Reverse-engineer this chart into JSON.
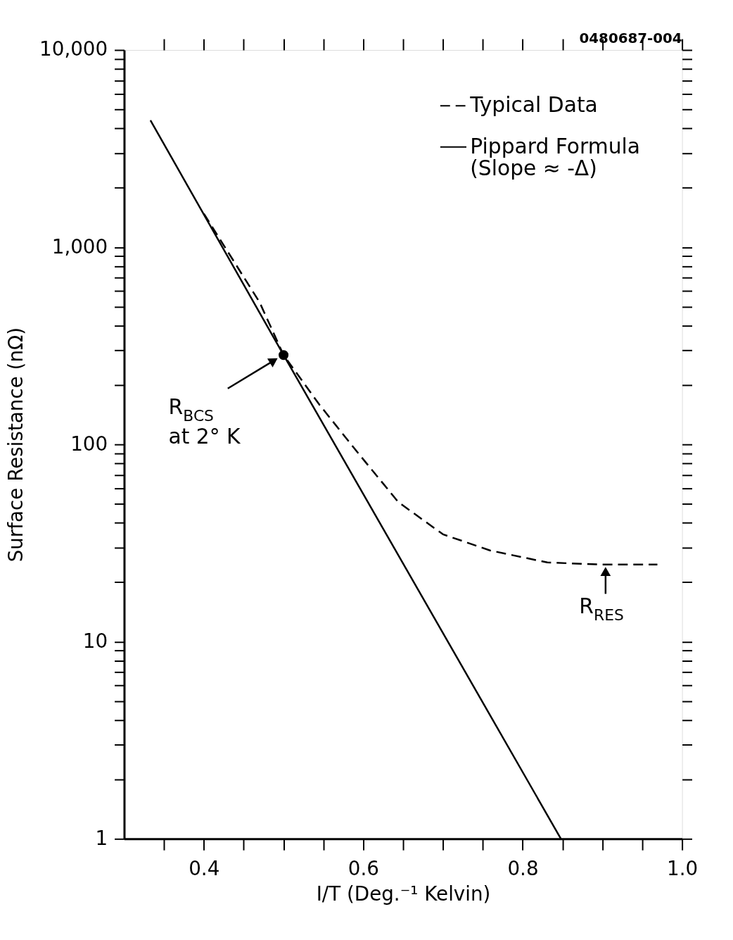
{
  "chart_data": {
    "type": "line",
    "xlabel": "I/T (Deg.⁻¹ Kelvin)",
    "ylabel": "Surface Resistance (nΩ)",
    "xlim": [
      0.3,
      1.0
    ],
    "ylim": [
      1,
      10000
    ],
    "log": "y",
    "grid": false,
    "legend": "top right",
    "xticks": [
      {
        "value": 0.35,
        "label": null
      },
      0.4,
      {
        "value": 0.45,
        "label": null
      },
      {
        "value": 0.5,
        "label": null
      },
      {
        "value": 0.55,
        "label": null
      },
      0.6,
      {
        "value": 0.65,
        "label": null
      },
      {
        "value": 0.7,
        "label": null
      },
      {
        "value": 0.75,
        "label": null
      },
      0.8,
      {
        "value": 0.85,
        "label": null
      },
      {
        "value": 0.9,
        "label": null
      },
      {
        "value": 0.95,
        "label": null
      },
      {
        "value": 1.0,
        "label": "1.0"
      }
    ],
    "yticks": [
      1,
      {
        "value": 2,
        "label": null
      },
      {
        "value": 3,
        "label": null
      },
      {
        "value": 4,
        "label": null
      },
      {
        "value": 5,
        "label": null
      },
      {
        "value": 6,
        "label": null
      },
      {
        "value": 7,
        "label": null
      },
      {
        "value": 8,
        "label": null
      },
      {
        "value": 9,
        "label": null
      },
      10,
      {
        "value": 20,
        "label": null
      },
      {
        "value": 30,
        "label": null
      },
      {
        "value": 40,
        "label": null
      },
      {
        "value": 50,
        "label": null
      },
      {
        "value": 60,
        "label": null
      },
      {
        "value": 70,
        "label": null
      },
      {
        "value": 80,
        "label": null
      },
      {
        "value": 90,
        "label": null
      },
      100,
      {
        "value": 200,
        "label": null
      },
      {
        "value": 300,
        "label": null
      },
      {
        "value": 400,
        "label": null
      },
      {
        "value": 500,
        "label": null
      },
      {
        "value": 600,
        "label": null
      },
      {
        "value": 700,
        "label": null
      },
      {
        "value": 800,
        "label": null
      },
      {
        "value": 900,
        "label": null
      },
      {
        "value": 1000,
        "label": "1,000"
      },
      {
        "value": 2000,
        "label": null
      },
      {
        "value": 3000,
        "label": null
      },
      {
        "value": 4000,
        "label": null
      },
      {
        "value": 5000,
        "label": null
      },
      {
        "value": 6000,
        "label": null
      },
      {
        "value": 7000,
        "label": null
      },
      {
        "value": 8000,
        "label": null
      },
      {
        "value": 9000,
        "label": null
      },
      {
        "value": 10000,
        "label": "10,000"
      }
    ],
    "series": [
      {
        "name": "Typical Data",
        "line_style": "dashed",
        "color": "#000000",
        "x": [
          0.4,
          0.47,
          0.5,
          0.545,
          0.592,
          0.644,
          0.7,
          0.759,
          0.831,
          0.897,
          0.969
        ],
        "values": [
          1480,
          525,
          284,
          159,
          92,
          51,
          35,
          29,
          25.2,
          24.6,
          24.6
        ]
      },
      {
        "name": "Pippard Formula (Slope ≈ -Δ)",
        "line_style": "solid",
        "color": "#000000",
        "x": [
          0.333,
          0.5,
          0.848
        ],
        "values": [
          4400,
          284,
          1
        ]
      },
      {
        "type": "scatter",
        "marker": "circle",
        "color": "#000000",
        "x": [
          0.5
        ],
        "values": [
          284
        ]
      }
    ],
    "annotations": [
      "0480687-004",
      {
        "text": "R$_{BCS}$ at 2° K",
        "x": 0.5,
        "y": 284
      },
      {
        "text": "R$_{RES}$",
        "x": 0.904,
        "y": 24.6
      }
    ]
  }
}
